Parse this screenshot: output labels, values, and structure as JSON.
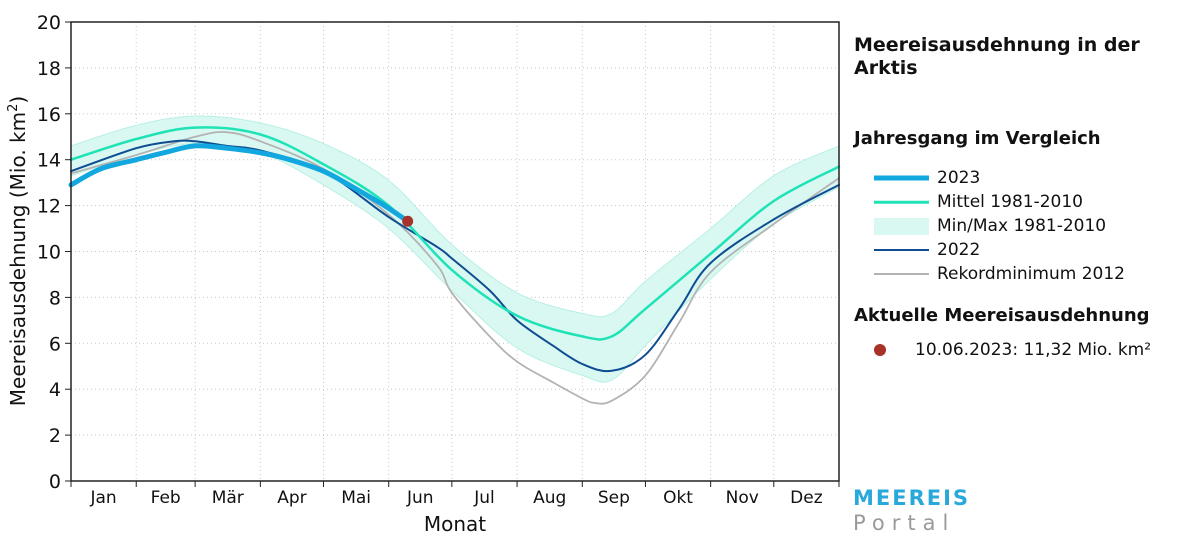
{
  "colors": {
    "y2023": "#12a7de",
    "mean": "#1fe3b6",
    "minmax": "#d9f8f2",
    "minmax_edge": "#b7f0e4",
    "y2022": "#0e4d92",
    "record": "#b3b3b3",
    "current_dot": "#a8312a",
    "logo_top": "#29a8dc",
    "logo_bottom": "#9a9a9a"
  },
  "panel": {
    "title": "Meereisausdehnung in der Arktis",
    "legend_heading": "Jahresgang im Vergleich",
    "legend": [
      {
        "label": "2023",
        "key": "y2023"
      },
      {
        "label": "Mittel 1981-2010",
        "key": "mean"
      },
      {
        "label": "Min/Max 1981-2010",
        "key": "minmax"
      },
      {
        "label": "2022",
        "key": "y2022"
      },
      {
        "label": "Rekordminimum 2012",
        "key": "record"
      }
    ],
    "current_heading": "Aktuelle Meereisausdehnung",
    "current_value": "10.06.2023:  11,32 Mio. km²"
  },
  "logo": {
    "line1": "MEEREIS",
    "line2": "Portal"
  },
  "chart_data": {
    "type": "line",
    "xlabel": "Monat",
    "ylabel": "Meereisausdehnung (Mio. km²)",
    "ylim": [
      0,
      20
    ],
    "yticks": [
      0,
      2,
      4,
      6,
      8,
      10,
      12,
      14,
      16,
      18,
      20
    ],
    "xlim": [
      1,
      366
    ],
    "months": [
      "Jan",
      "Feb",
      "Mär",
      "Apr",
      "Mai",
      "Jun",
      "Jul",
      "Aug",
      "Sep",
      "Okt",
      "Nov",
      "Dez"
    ],
    "grid": true,
    "x_unit": "day of year",
    "series": [
      {
        "name": "Min/Max 1981-2010",
        "key": "minmax",
        "x": [
          1,
          32,
          60,
          91,
          121,
          152,
          182,
          213,
          244,
          258,
          274,
          305,
          335,
          366
        ],
        "lower": [
          13.3,
          14.2,
          14.7,
          14.3,
          12.9,
          11.0,
          8.3,
          5.8,
          4.6,
          4.4,
          5.9,
          8.8,
          11.2,
          12.8
        ],
        "upper": [
          14.6,
          15.5,
          15.9,
          15.6,
          14.7,
          13.1,
          10.3,
          8.2,
          7.3,
          7.3,
          8.7,
          11.0,
          13.3,
          14.6
        ]
      },
      {
        "name": "Mittel 1981-2010",
        "key": "mean",
        "x": [
          1,
          32,
          60,
          91,
          121,
          152,
          182,
          213,
          244,
          258,
          274,
          305,
          335,
          366
        ],
        "y": [
          14.0,
          14.9,
          15.4,
          15.1,
          13.8,
          12.0,
          9.2,
          7.2,
          6.3,
          6.3,
          7.5,
          9.9,
          12.2,
          13.7
        ]
      },
      {
        "name": "Rekordminimum 2012",
        "key": "record",
        "x": [
          1,
          32,
          60,
          75,
          91,
          121,
          152,
          175,
          182,
          200,
          213,
          230,
          244,
          250,
          258,
          274,
          290,
          305,
          335,
          366
        ],
        "y": [
          13.4,
          14.2,
          15.0,
          15.2,
          14.8,
          13.6,
          11.6,
          9.4,
          8.2,
          6.3,
          5.2,
          4.3,
          3.6,
          3.4,
          3.5,
          4.6,
          6.9,
          9.1,
          11.2,
          13.2
        ]
      },
      {
        "name": "2022",
        "key": "y2022",
        "x": [
          1,
          32,
          50,
          60,
          75,
          91,
          121,
          152,
          175,
          182,
          200,
          213,
          230,
          244,
          258,
          274,
          290,
          305,
          335,
          366
        ],
        "y": [
          13.5,
          14.5,
          14.8,
          14.8,
          14.6,
          14.4,
          13.5,
          11.5,
          10.2,
          9.7,
          8.3,
          7.0,
          5.9,
          5.1,
          4.8,
          5.5,
          7.5,
          9.5,
          11.4,
          12.9
        ]
      },
      {
        "name": "2023",
        "key": "y2023",
        "x": [
          1,
          15,
          32,
          45,
          60,
          75,
          91,
          105,
          121,
          135,
          150,
          161
        ],
        "y": [
          12.9,
          13.6,
          14.0,
          14.3,
          14.6,
          14.5,
          14.3,
          14.0,
          13.5,
          12.8,
          12.0,
          11.32
        ]
      }
    ],
    "current_point": {
      "x": 161,
      "y": 11.32,
      "label": "10.06.2023:  11,32 Mio. km²"
    }
  }
}
